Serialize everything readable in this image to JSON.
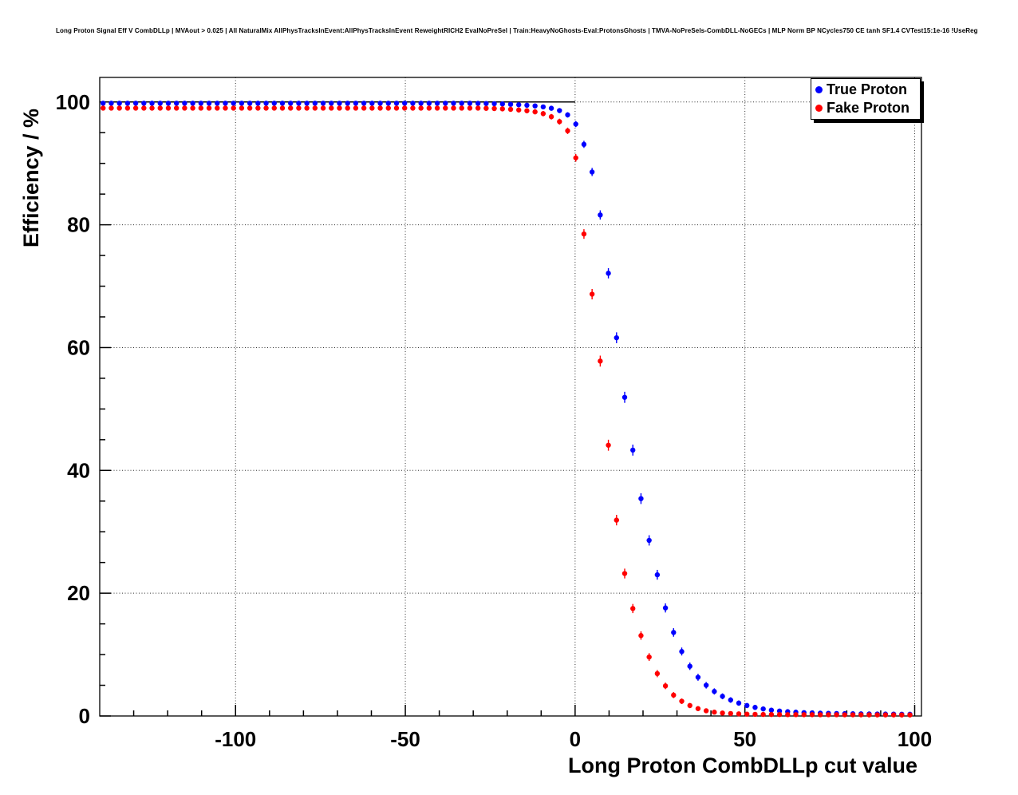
{
  "header": {
    "title": "Long Proton Signal Eff V CombDLLp | MVAout > 0.025 | All NaturalMix AllPhysTracksInEvent:AllPhysTracksInEvent ReweightRICH2 EvalNoPreSel | Train:HeavyNoGhosts-Eval:ProtonsGhosts | TMVA-NoPreSels-CombDLL-NoGECs | MLP Norm BP NCycles750 CE tanh SF1.4 CVTest15:1e-16 !UseReg"
  },
  "chart_data": {
    "type": "scatter",
    "title": "Long Proton Signal Eff V CombDLLp",
    "xlabel": "Long Proton CombDLLp cut value",
    "ylabel": "Efficiency / %",
    "xlim": [
      -140,
      102
    ],
    "ylim": [
      0,
      104
    ],
    "xticks": [
      -100,
      -50,
      0,
      50,
      100
    ],
    "yticks": [
      0,
      20,
      40,
      60,
      80,
      100
    ],
    "xtick_minor_step": 10,
    "ytick_minor_step": 5,
    "grid": "dotted",
    "legend_position": "top-right",
    "reference_line": {
      "y": 100,
      "x_from": -140,
      "x_to": 0
    },
    "x": [
      -139,
      -136.6,
      -134.2,
      -131.8,
      -129.4,
      -127,
      -124.6,
      -122.2,
      -119.8,
      -117.4,
      -115,
      -112.6,
      -110.2,
      -107.8,
      -105.4,
      -103,
      -100.6,
      -98.2,
      -95.8,
      -93.4,
      -91,
      -88.6,
      -86.2,
      -83.8,
      -81.4,
      -79,
      -76.6,
      -74.2,
      -71.8,
      -69.4,
      -67,
      -64.6,
      -62.2,
      -59.8,
      -57.4,
      -55,
      -52.6,
      -50.2,
      -47.8,
      -45.4,
      -43,
      -40.6,
      -38.2,
      -35.8,
      -33.4,
      -31,
      -28.6,
      -26.2,
      -23.8,
      -21.4,
      -19,
      -16.6,
      -14.2,
      -11.8,
      -9.4,
      -7,
      -4.6,
      -2.2,
      0.2,
      2.6,
      5,
      7.4,
      9.8,
      12.2,
      14.6,
      17,
      19.4,
      21.8,
      24.2,
      26.6,
      29,
      31.4,
      33.8,
      36.2,
      38.6,
      41,
      43.4,
      45.8,
      48.2,
      50.6,
      53,
      55.4,
      57.8,
      60.2,
      62.6,
      65,
      67.4,
      69.8,
      72.2,
      74.6,
      77,
      79.4,
      81.8,
      84.2,
      86.6,
      89,
      91.4,
      93.8,
      96.2,
      98.6
    ],
    "series": [
      {
        "name": "True Proton",
        "color": "#0000ff",
        "values": [
          99.8,
          99.8,
          99.8,
          99.8,
          99.8,
          99.8,
          99.8,
          99.8,
          99.8,
          99.8,
          99.8,
          99.8,
          99.8,
          99.8,
          99.8,
          99.8,
          99.8,
          99.8,
          99.8,
          99.8,
          99.8,
          99.8,
          99.8,
          99.8,
          99.8,
          99.8,
          99.8,
          99.8,
          99.8,
          99.8,
          99.8,
          99.8,
          99.8,
          99.8,
          99.8,
          99.8,
          99.8,
          99.8,
          99.8,
          99.8,
          99.8,
          99.8,
          99.8,
          99.8,
          99.8,
          99.8,
          99.78,
          99.75,
          99.72,
          99.68,
          99.62,
          99.55,
          99.47,
          99.36,
          99.2,
          98.98,
          98.6,
          97.9,
          96.4,
          93.1,
          88.6,
          81.6,
          72.1,
          61.6,
          51.9,
          43.3,
          35.4,
          28.6,
          23.0,
          17.6,
          13.6,
          10.5,
          8.1,
          6.3,
          5.0,
          4.0,
          3.2,
          2.6,
          2.1,
          1.7,
          1.4,
          1.15,
          0.95,
          0.8,
          0.7,
          0.62,
          0.55,
          0.5,
          0.46,
          0.43,
          0.4,
          0.38,
          0.36,
          0.34,
          0.33,
          0.32,
          0.31,
          0.3,
          0.29,
          0.28
        ]
      },
      {
        "name": "Fake Proton",
        "color": "#ff0000",
        "values": [
          99.0,
          99.0,
          99.0,
          99.0,
          99.0,
          99.0,
          99.0,
          99.0,
          99.0,
          99.0,
          99.0,
          99.0,
          99.0,
          99.0,
          99.0,
          99.0,
          99.0,
          99.0,
          99.0,
          99.0,
          99.0,
          99.0,
          99.0,
          99.0,
          99.0,
          99.0,
          99.0,
          99.0,
          99.0,
          99.0,
          99.0,
          99.0,
          99.0,
          99.0,
          99.0,
          99.0,
          99.0,
          99.0,
          99.0,
          99.0,
          99.0,
          99.0,
          99.0,
          99.0,
          99.0,
          99.0,
          99.0,
          98.97,
          98.93,
          98.88,
          98.8,
          98.7,
          98.57,
          98.4,
          98.1,
          97.6,
          96.8,
          95.3,
          90.9,
          78.5,
          68.7,
          57.8,
          44.1,
          31.9,
          23.2,
          17.5,
          13.1,
          9.6,
          6.9,
          4.9,
          3.4,
          2.4,
          1.7,
          1.2,
          0.85,
          0.62,
          0.48,
          0.4,
          0.34,
          0.3,
          0.27,
          0.25,
          0.24,
          0.23,
          0.22,
          0.22,
          0.21,
          0.21,
          0.2,
          0.2,
          0.2,
          0.19,
          0.19,
          0.19,
          0.18,
          0.18,
          0.18,
          0.18,
          0.17,
          0.17
        ]
      }
    ]
  }
}
